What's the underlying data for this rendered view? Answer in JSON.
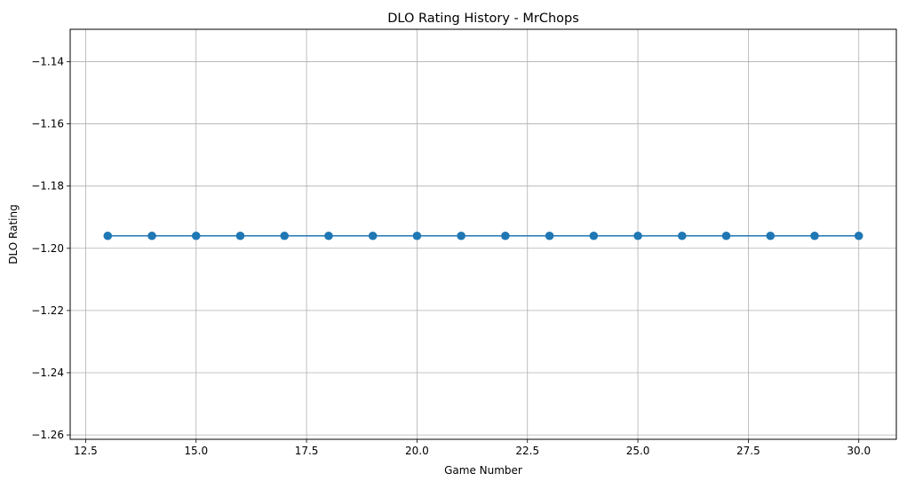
{
  "chart_data": {
    "type": "line",
    "title": "DLO Rating History - MrChops",
    "xlabel": "Game Number",
    "ylabel": "DLO Rating",
    "xlim": [
      12.15,
      30.85
    ],
    "ylim": [
      -1.2614,
      -1.1296
    ],
    "x_ticks": [
      12.5,
      15.0,
      17.5,
      20.0,
      22.5,
      25.0,
      27.5,
      30.0
    ],
    "x_tick_labels": [
      "12.5",
      "15.0",
      "17.5",
      "20.0",
      "22.5",
      "25.0",
      "27.5",
      "30.0"
    ],
    "y_ticks": [
      -1.14,
      -1.16,
      -1.18,
      -1.2,
      -1.22,
      -1.24,
      -1.26
    ],
    "y_tick_labels": [
      "−1.14",
      "−1.16",
      "−1.18",
      "−1.20",
      "−1.22",
      "−1.24",
      "−1.26"
    ],
    "grid": true,
    "series": [
      {
        "color": "#1f77b4",
        "marker": "circle",
        "x": [
          13,
          14,
          15,
          16,
          17,
          18,
          19,
          20,
          21,
          22,
          23,
          24,
          25,
          26,
          27,
          28,
          29,
          30
        ],
        "y": [
          -1.196,
          -1.196,
          -1.196,
          -1.196,
          -1.196,
          -1.196,
          -1.196,
          -1.196,
          -1.196,
          -1.196,
          -1.196,
          -1.196,
          -1.196,
          -1.196,
          -1.196,
          -1.196,
          -1.196,
          -1.196
        ]
      }
    ]
  }
}
